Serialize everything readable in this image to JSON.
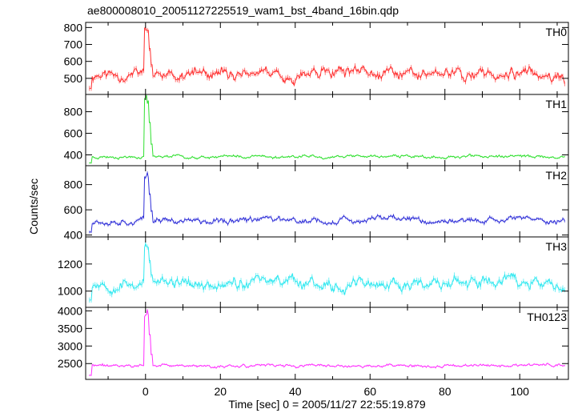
{
  "file_title": "ae800008010_20051127225519_wam1_bst_4band_16bin.qdp",
  "chart_data": {
    "type": "line",
    "xlabel": "Time [sec] 0 = 2005/11/27 22:55:19.879",
    "ylabel": "Counts/sec",
    "xlim": [
      -16,
      113
    ],
    "x_ticks": [
      0,
      20,
      40,
      60,
      80,
      100
    ],
    "x_start": -15,
    "x_end": 112,
    "panels": [
      {
        "name": "TH0",
        "color": "#ff3030",
        "ylim": [
          405,
          830
        ],
        "y_ticks": [
          500,
          600,
          700,
          800
        ],
        "baseline": 525,
        "noise": 42,
        "peak": 800,
        "seed": 11
      },
      {
        "name": "TH1",
        "color": "#30e030",
        "ylim": [
          300,
          960
        ],
        "y_ticks": [
          400,
          600,
          800
        ],
        "baseline": 385,
        "noise": 18,
        "peak": 960,
        "seed": 23
      },
      {
        "name": "TH2",
        "color": "#3030d8",
        "ylim": [
          385,
          950
        ],
        "y_ticks": [
          400,
          600,
          800
        ],
        "baseline": 515,
        "noise": 30,
        "peak": 900,
        "seed": 37
      },
      {
        "name": "TH3",
        "color": "#30e8f0",
        "ylim": [
          880,
          1400
        ],
        "y_ticks": [
          1000,
          1200
        ],
        "baseline": 1060,
        "noise": 55,
        "peak": 1360,
        "seed": 53
      },
      {
        "name": "TH0123",
        "color": "#ff30ff",
        "ylim": [
          2050,
          4100
        ],
        "y_ticks": [
          2500,
          3000,
          3500,
          4000
        ],
        "baseline": 2440,
        "noise": 55,
        "peak": 4050,
        "seed": 71
      }
    ]
  }
}
